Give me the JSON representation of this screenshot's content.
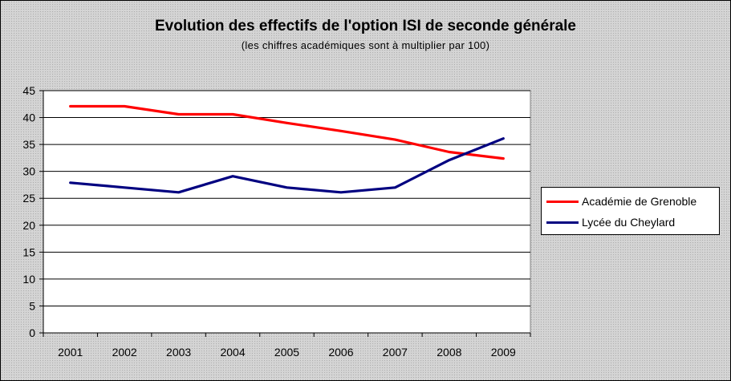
{
  "chart_data": {
    "type": "line",
    "title": "Evolution des effectifs de l'option ISI de seconde générale",
    "subtitle": "(les chiffres académiques sont à multiplier par 100)",
    "categories": [
      "2001",
      "2002",
      "2003",
      "2004",
      "2005",
      "2006",
      "2007",
      "2008",
      "2009"
    ],
    "ylim": [
      0,
      45
    ],
    "yticks": [
      "0",
      "5",
      "10",
      "15",
      "20",
      "25",
      "30",
      "35",
      "40",
      "45"
    ],
    "grid": true,
    "legend_position": "right",
    "series": [
      {
        "name": "Académie de Grenoble",
        "color": "#ff0000",
        "values": [
          42.1,
          42.1,
          40.6,
          40.6,
          39,
          37.5,
          35.9,
          33.6,
          32.4
        ]
      },
      {
        "name": "Lycée du Cheylard",
        "color": "#000080",
        "values": [
          27.9,
          27,
          26.1,
          29.1,
          27,
          26.1,
          27,
          32.1,
          36.1
        ]
      }
    ]
  }
}
